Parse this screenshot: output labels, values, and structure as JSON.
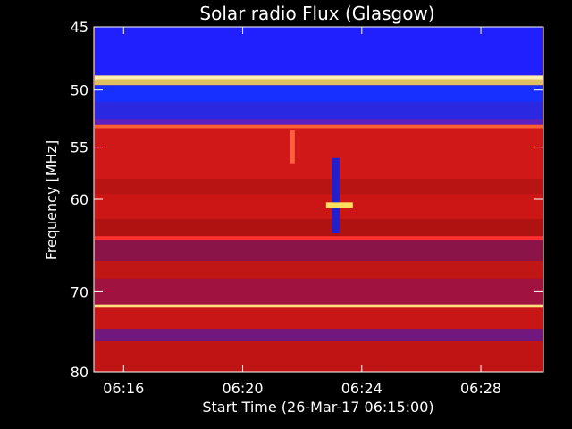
{
  "chart_data": {
    "type": "heatmap",
    "title": "Solar radio Flux (Glasgow)",
    "xlabel": "Start Time (26-Mar-17 06:15:00)",
    "ylabel": "Frequency [MHz]",
    "x_ticks": [
      "06:16",
      "06:20",
      "06:24",
      "06:28"
    ],
    "x_tick_minutes": [
      16,
      20,
      24,
      28
    ],
    "xlim_minutes": [
      15.0,
      30.1
    ],
    "y_ticks": [
      45,
      50,
      55,
      60,
      70,
      80
    ],
    "ylim": [
      45,
      80
    ],
    "bands": [
      {
        "f0": 45.0,
        "f1": 48.8,
        "color": "#2020ff"
      },
      {
        "f0": 48.8,
        "f1": 49.1,
        "color": "#fff0b0"
      },
      {
        "f0": 49.1,
        "f1": 49.6,
        "color": "#e0c060"
      },
      {
        "f0": 49.6,
        "f1": 51.0,
        "color": "#1830ff"
      },
      {
        "f0": 51.0,
        "f1": 52.5,
        "color": "#2a28e0"
      },
      {
        "f0": 52.5,
        "f1": 53.0,
        "color": "#6020c0"
      },
      {
        "f0": 53.0,
        "f1": 53.3,
        "color": "#ff6030"
      },
      {
        "f0": 53.3,
        "f1": 58.0,
        "color": "#d01818"
      },
      {
        "f0": 58.0,
        "f1": 59.5,
        "color": "#b81414"
      },
      {
        "f0": 59.5,
        "f1": 62.0,
        "color": "#cc1616"
      },
      {
        "f0": 62.0,
        "f1": 63.8,
        "color": "#b01212"
      },
      {
        "f0": 63.8,
        "f1": 64.2,
        "color": "#ff3030"
      },
      {
        "f0": 64.2,
        "f1": 66.5,
        "color": "#8a1448"
      },
      {
        "f0": 66.5,
        "f1": 68.5,
        "color": "#c01616"
      },
      {
        "f0": 68.5,
        "f1": 71.5,
        "color": "#a01240"
      },
      {
        "f0": 71.5,
        "f1": 71.9,
        "color": "#ffe080"
      },
      {
        "f0": 71.9,
        "f1": 74.5,
        "color": "#c81616"
      },
      {
        "f0": 74.5,
        "f1": 76.0,
        "color": "#701880"
      },
      {
        "f0": 76.0,
        "f1": 80.0,
        "color": "#c01414"
      }
    ],
    "events": [
      {
        "t0": 23.0,
        "t1": 23.25,
        "f0": 56.0,
        "f1": 63.5,
        "color": "#2020d0"
      },
      {
        "t0": 22.8,
        "t1": 23.7,
        "f0": 60.3,
        "f1": 60.9,
        "color": "#ffe060"
      },
      {
        "t0": 21.6,
        "t1": 21.75,
        "f0": 53.5,
        "f1": 56.5,
        "color": "#ff6040"
      }
    ]
  }
}
